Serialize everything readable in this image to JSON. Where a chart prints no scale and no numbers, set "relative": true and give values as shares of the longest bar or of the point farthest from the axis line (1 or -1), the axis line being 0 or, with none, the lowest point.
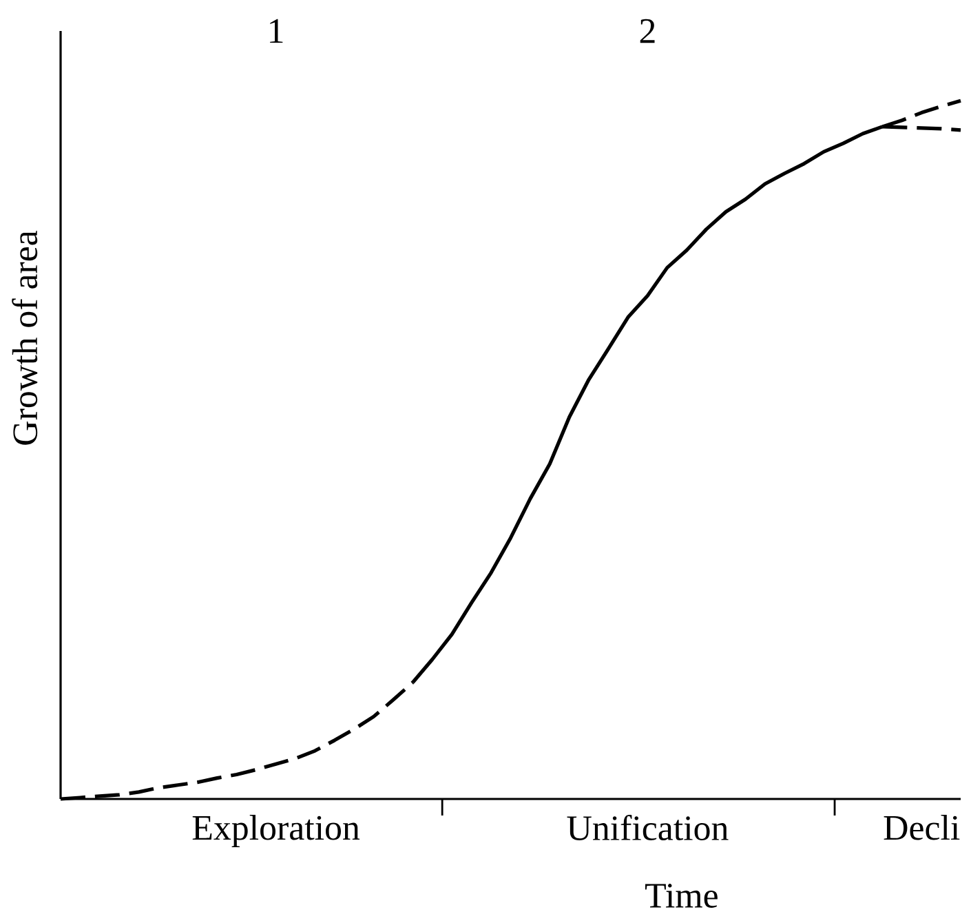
{
  "chart_data": {
    "type": "line",
    "relative": true,
    "xlabel": "Time",
    "ylabel": "Growth of area",
    "annotations": [
      "1",
      "2"
    ],
    "categories": [
      null,
      null,
      null,
      null,
      null,
      null,
      null,
      null,
      null,
      null,
      null,
      "Exploration",
      null,
      null,
      null,
      null,
      null,
      null,
      null,
      null,
      null,
      null,
      null,
      null,
      null,
      null,
      null,
      null,
      null,
      null,
      "Unification",
      null,
      null,
      null,
      null,
      null,
      null,
      null,
      null,
      null,
      null,
      null,
      null,
      null,
      "Decli",
      null,
      null
    ],
    "series": [
      {
        "color": "#000000",
        "line_style": "dashed",
        "values": [
          0,
          0.002,
          0.004,
          0.006,
          0.01,
          0.016,
          0.02,
          0.024,
          0.03,
          0.035,
          0.042,
          0.05,
          0.058,
          0.069,
          0.084,
          0.1,
          0.118,
          0.142,
          0.167,
          null,
          null,
          null,
          null,
          null,
          null,
          null,
          null,
          null,
          null,
          null,
          null,
          null,
          null,
          null,
          null,
          null,
          null,
          null,
          null,
          null,
          null,
          null,
          null,
          null,
          null,
          null,
          null
        ]
      },
      {
        "color": "#000000",
        "line_style": "solid",
        "values": [
          null,
          null,
          null,
          null,
          null,
          null,
          null,
          null,
          null,
          null,
          null,
          null,
          null,
          null,
          null,
          null,
          null,
          null,
          0.167,
          0.2,
          0.236,
          0.281,
          0.324,
          0.374,
          0.43,
          0.48,
          0.547,
          0.601,
          0.645,
          0.69,
          0.721,
          0.761,
          0.786,
          0.816,
          0.841,
          0.859,
          0.881,
          0.896,
          0.91,
          0.927,
          0.939,
          0.953,
          0.963,
          null,
          null,
          null,
          null
        ]
      },
      {
        "color": "#000000",
        "line_style": "dashed",
        "values": [
          null,
          null,
          null,
          null,
          null,
          null,
          null,
          null,
          null,
          null,
          null,
          null,
          null,
          null,
          null,
          null,
          null,
          null,
          null,
          null,
          null,
          null,
          null,
          null,
          null,
          null,
          null,
          null,
          null,
          null,
          null,
          null,
          null,
          null,
          null,
          null,
          null,
          null,
          null,
          null,
          null,
          null,
          0.963,
          0.972,
          0.983,
          0.992,
          1.0
        ]
      },
      {
        "color": "#000000",
        "line_style": "dashed",
        "values": [
          null,
          null,
          null,
          null,
          null,
          null,
          null,
          null,
          null,
          null,
          null,
          null,
          null,
          null,
          null,
          null,
          null,
          null,
          null,
          null,
          null,
          null,
          null,
          null,
          null,
          null,
          null,
          null,
          null,
          null,
          null,
          null,
          null,
          null,
          null,
          null,
          null,
          null,
          null,
          null,
          null,
          null,
          0.963,
          0.962,
          0.961,
          0.96,
          0.958
        ]
      }
    ]
  }
}
